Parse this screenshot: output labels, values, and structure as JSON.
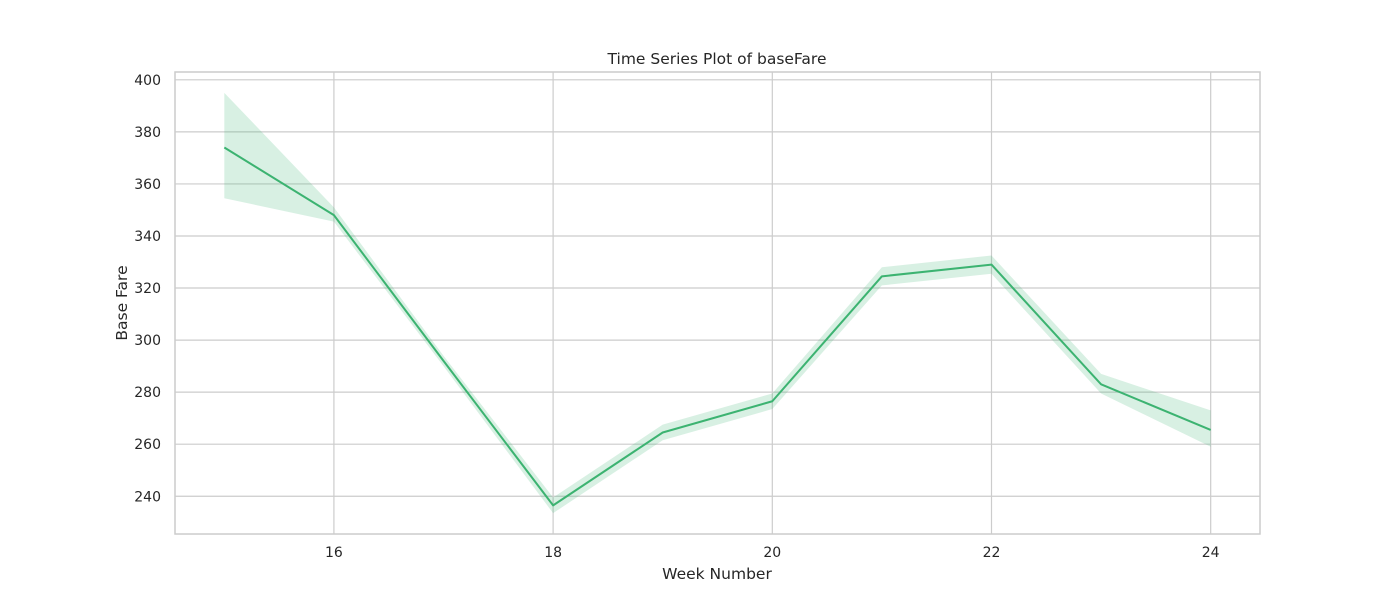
{
  "chart_data": {
    "type": "line",
    "title": "Time Series Plot of baseFare",
    "xlabel": "Week Number",
    "ylabel": "Base Fare",
    "xlim": [
      14.55,
      24.45
    ],
    "ylim": [
      225.5,
      403
    ],
    "x_ticks": [
      16,
      18,
      20,
      22,
      24
    ],
    "y_ticks": [
      240,
      260,
      280,
      300,
      320,
      340,
      360,
      380,
      400
    ],
    "grid": true,
    "legend": "none",
    "series": [
      {
        "x": [
          15,
          16,
          17,
          18,
          19,
          20,
          21,
          22,
          23,
          24
        ],
        "y": [
          374,
          348,
          292,
          236.5,
          264.5,
          276.5,
          324.5,
          329,
          283,
          265.5
        ],
        "ci_lower": [
          354.5,
          345.5,
          290,
          233.5,
          261.5,
          273.5,
          321,
          325.5,
          279.5,
          259
        ],
        "ci_upper": [
          395,
          351,
          294,
          239.5,
          267.5,
          279.5,
          328,
          332.5,
          287,
          273
        ],
        "color": "#3cb371",
        "band_color": "#3cb371",
        "band_opacity": 0.2
      }
    ]
  }
}
